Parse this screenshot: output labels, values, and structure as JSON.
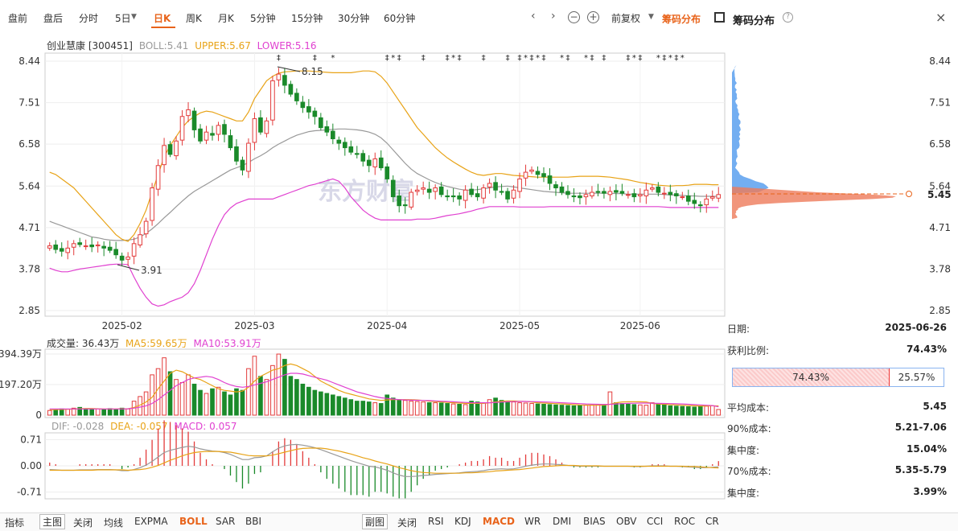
{
  "toolbar": {
    "items": [
      "盘前",
      "盘后",
      "分时",
      "5日",
      "日K",
      "周K",
      "月K",
      "5分钟",
      "15分钟",
      "30分钟",
      "60分钟"
    ],
    "dropdown_icon": "caret-down-icon",
    "adjust": "前复权",
    "dist_button": "筹码分布",
    "dist_title": "筹码分布",
    "help": "?",
    "close": "×"
  },
  "main_legend": {
    "stock": "创业慧康 [300451]",
    "boll": "BOLL:5.41",
    "upper": "UPPER:5.67",
    "lower": "LOWER:5.16"
  },
  "volume_legend": {
    "vol": "成交量: 36.43万",
    "ma5": "MA5:59.65万",
    "ma10": "MA10:53.91万"
  },
  "macd_legend": {
    "dif": "DIF: -0.028",
    "dea": "DEA: -0.057",
    "macd": "MACD: 0.057"
  },
  "watermark": "东方财富",
  "annotations": {
    "high": "8.15",
    "low": "3.91"
  },
  "current_price": "5.45",
  "colors": {
    "up": "#e33b3b",
    "down": "#1a8a2a",
    "upper": "#e8a317",
    "mid": "#999999",
    "lower": "#e040d0",
    "accent": "#e8631a"
  },
  "chart_data": [
    {
      "type": "candlestick",
      "title": "创业慧康 [300451]",
      "y_ticks": [
        "8.44",
        "7.51",
        "6.58",
        "5.64",
        "4.71",
        "3.78",
        "2.85"
      ],
      "ylim": [
        2.85,
        8.44
      ],
      "x_ticks": [
        "2025-02",
        "2025-03",
        "2025-04",
        "2025-05",
        "2025-06"
      ],
      "close": [
        4.3,
        4.22,
        4.18,
        4.25,
        4.35,
        4.33,
        4.3,
        4.28,
        4.32,
        4.25,
        4.2,
        4.1,
        3.98,
        4.05,
        4.35,
        4.55,
        4.85,
        5.6,
        6.1,
        6.55,
        6.35,
        6.65,
        7.2,
        7.35,
        6.9,
        6.65,
        6.85,
        6.78,
        7.0,
        6.8,
        6.5,
        6.2,
        6.0,
        6.6,
        7.15,
        6.85,
        7.1,
        8.0,
        8.15,
        7.9,
        7.7,
        7.55,
        7.4,
        7.3,
        7.2,
        6.95,
        6.85,
        6.7,
        6.6,
        6.5,
        6.4,
        6.35,
        6.2,
        6.1,
        6.25,
        6.05,
        5.8,
        5.4,
        5.2,
        5.2,
        5.5,
        5.55,
        5.6,
        5.5,
        5.6,
        5.45,
        5.4,
        5.4,
        5.35,
        5.55,
        5.45,
        5.4,
        5.6,
        5.7,
        5.55,
        5.5,
        5.35,
        5.55,
        5.8,
        5.95,
        6.0,
        5.9,
        5.85,
        5.7,
        5.6,
        5.5,
        5.45,
        5.4,
        5.38,
        5.45,
        5.5,
        5.5,
        5.48,
        5.52,
        5.5,
        5.48,
        5.45,
        5.4,
        5.45,
        5.55,
        5.6,
        5.5,
        5.48,
        5.45,
        5.42,
        5.4,
        5.3,
        5.25,
        5.2,
        5.35,
        5.4,
        5.45
      ],
      "series": [
        {
          "name": "BOLL",
          "values": [
            4.85,
            4.8,
            4.75,
            4.7,
            4.65,
            4.6,
            4.55,
            4.5,
            4.48,
            4.45,
            4.43,
            4.42,
            4.42,
            4.43,
            4.45,
            4.5,
            4.58,
            4.68,
            4.8,
            4.93,
            5.05,
            5.18,
            5.3,
            5.42,
            5.52,
            5.6,
            5.68,
            5.76,
            5.84,
            5.92,
            6.0,
            6.05,
            6.1,
            6.17,
            6.25,
            6.32,
            6.4,
            6.5,
            6.58,
            6.65,
            6.72,
            6.78,
            6.82,
            6.86,
            6.88,
            6.89,
            6.9,
            6.91,
            6.92,
            6.92,
            6.91,
            6.9,
            6.88,
            6.85,
            6.8,
            6.72,
            6.6,
            6.45,
            6.3,
            6.15,
            6.02,
            5.92,
            5.85,
            5.78,
            5.72,
            5.67,
            5.63,
            5.6,
            5.57,
            5.55,
            5.55,
            5.56,
            5.58,
            5.6,
            5.62,
            5.63,
            5.64,
            5.62,
            5.6,
            5.58,
            5.56,
            5.54,
            5.52,
            5.51,
            5.5,
            5.49,
            5.48,
            5.48,
            5.48,
            5.48,
            5.48,
            5.48,
            5.48,
            5.48,
            5.47,
            5.47,
            5.46,
            5.46,
            5.46,
            5.46,
            5.46,
            5.46,
            5.45,
            5.44,
            5.44,
            5.43,
            5.42,
            5.42,
            5.41,
            5.41,
            5.41,
            5.41
          ]
        },
        {
          "name": "UPPER",
          "values": [
            5.95,
            5.9,
            5.8,
            5.7,
            5.6,
            5.45,
            5.3,
            5.15,
            5.0,
            4.85,
            4.7,
            4.55,
            4.45,
            4.4,
            4.55,
            4.8,
            5.1,
            5.5,
            5.9,
            6.3,
            6.55,
            6.75,
            6.95,
            7.1,
            7.2,
            7.28,
            7.32,
            7.3,
            7.25,
            7.2,
            7.15,
            7.1,
            7.1,
            7.3,
            7.6,
            7.8,
            8.0,
            8.1,
            8.17,
            8.2,
            8.21,
            8.22,
            8.22,
            8.22,
            8.21,
            8.2,
            8.19,
            8.18,
            8.18,
            8.18,
            8.18,
            8.2,
            8.22,
            8.22,
            8.2,
            8.1,
            7.95,
            7.75,
            7.55,
            7.35,
            7.15,
            6.95,
            6.8,
            6.65,
            6.5,
            6.38,
            6.27,
            6.18,
            6.1,
            6.02,
            5.95,
            5.9,
            5.88,
            5.9,
            5.92,
            5.92,
            5.9,
            5.88,
            5.87,
            5.86,
            5.85,
            5.84,
            5.84,
            5.84,
            5.84,
            5.84,
            5.84,
            5.85,
            5.86,
            5.86,
            5.86,
            5.86,
            5.85,
            5.84,
            5.82,
            5.8,
            5.78,
            5.75,
            5.72,
            5.7,
            5.68,
            5.66,
            5.65,
            5.64,
            5.65,
            5.65,
            5.66,
            5.68,
            5.68,
            5.68,
            5.67,
            5.67
          ]
        },
        {
          "name": "LOWER",
          "values": [
            3.8,
            3.75,
            3.72,
            3.72,
            3.75,
            3.78,
            3.8,
            3.82,
            3.84,
            3.86,
            3.88,
            3.89,
            3.89,
            3.88,
            3.6,
            3.35,
            3.15,
            3.0,
            2.95,
            2.98,
            3.05,
            3.1,
            3.15,
            3.25,
            3.45,
            3.75,
            4.1,
            4.45,
            4.75,
            5.0,
            5.15,
            5.25,
            5.3,
            5.35,
            5.35,
            5.35,
            5.35,
            5.35,
            5.4,
            5.45,
            5.5,
            5.55,
            5.6,
            5.65,
            5.68,
            5.72,
            5.76,
            5.8,
            5.75,
            5.6,
            5.4,
            5.25,
            5.1,
            5.0,
            4.92,
            4.88,
            4.88,
            4.88,
            4.88,
            4.88,
            4.88,
            4.9,
            4.9,
            4.9,
            4.92,
            4.95,
            4.98,
            5.0,
            5.02,
            5.05,
            5.08,
            5.12,
            5.15,
            5.18,
            5.18,
            5.18,
            5.18,
            5.18,
            5.17,
            5.17,
            5.17,
            5.17,
            5.17,
            5.18,
            5.18,
            5.18,
            5.18,
            5.18,
            5.18,
            5.18,
            5.18,
            5.18,
            5.18,
            5.18,
            5.18,
            5.18,
            5.18,
            5.18,
            5.18,
            5.18,
            5.18,
            5.18,
            5.17,
            5.16,
            5.16,
            5.16,
            5.16,
            5.16,
            5.16,
            5.16,
            5.16,
            5.16
          ]
        }
      ]
    },
    {
      "type": "bar",
      "title": "成交量",
      "y_ticks": [
        "394.39万",
        "197.20万",
        "0"
      ],
      "ylim": [
        0,
        394.39
      ],
      "values": [
        30,
        35,
        40,
        38,
        45,
        50,
        42,
        38,
        40,
        36,
        42,
        38,
        45,
        40,
        90,
        120,
        150,
        260,
        300,
        370,
        280,
        230,
        210,
        260,
        200,
        160,
        140,
        170,
        180,
        150,
        130,
        170,
        160,
        300,
        380,
        250,
        230,
        320,
        394,
        360,
        250,
        230,
        200,
        180,
        160,
        150,
        140,
        130,
        120,
        110,
        100,
        90,
        90,
        85,
        80,
        75,
        130,
        110,
        100,
        95,
        90,
        88,
        85,
        80,
        80,
        78,
        75,
        72,
        70,
        68,
        90,
        85,
        80,
        100,
        110,
        95,
        90,
        85,
        80,
        78,
        75,
        72,
        70,
        68,
        66,
        64,
        62,
        60,
        62,
        64,
        66,
        68,
        70,
        150,
        80,
        75,
        70,
        68,
        66,
        64,
        80,
        70,
        65,
        60,
        58,
        56,
        54,
        52,
        55,
        58,
        60,
        36.43
      ],
      "series": [
        {
          "name": "MA5",
          "values": [
            35,
            36,
            37,
            38,
            39,
            41,
            43,
            43,
            41,
            40,
            39,
            40,
            41,
            41,
            50,
            65,
            85,
            115,
            170,
            220,
            270,
            290,
            280,
            260,
            240,
            230,
            210,
            190,
            170,
            160,
            155,
            150,
            155,
            180,
            220,
            250,
            270,
            290,
            300,
            320,
            330,
            320,
            300,
            280,
            250,
            220,
            200,
            180,
            160,
            145,
            135,
            125,
            115,
            105,
            100,
            95,
            98,
            100,
            100,
            100,
            100,
            98,
            95,
            90,
            87,
            85,
            82,
            80,
            78,
            76,
            76,
            76,
            76,
            80,
            85,
            90,
            92,
            92,
            90,
            88,
            84,
            80,
            78,
            76,
            74,
            72,
            70,
            68,
            66,
            65,
            64,
            64,
            65,
            70,
            80,
            85,
            86,
            86,
            86,
            85,
            76,
            72,
            70,
            68,
            66,
            64,
            62,
            60,
            59,
            59,
            60,
            59.65
          ]
        },
        {
          "name": "MA10",
          "values": [
            40,
            40,
            40,
            40,
            40,
            40,
            40,
            40,
            40,
            40,
            40,
            40,
            40,
            41,
            45,
            52,
            60,
            75,
            100,
            130,
            160,
            190,
            210,
            230,
            240,
            245,
            250,
            245,
            230,
            210,
            195,
            185,
            180,
            185,
            195,
            205,
            215,
            230,
            245,
            260,
            270,
            270,
            265,
            255,
            245,
            235,
            225,
            210,
            195,
            180,
            165,
            150,
            140,
            130,
            120,
            112,
            108,
            104,
            100,
            98,
            97,
            96,
            95,
            94,
            92,
            90,
            88,
            86,
            84,
            82,
            80,
            80,
            80,
            80,
            82,
            84,
            86,
            87,
            88,
            88,
            87,
            86,
            85,
            84,
            82,
            80,
            78,
            76,
            74,
            72,
            71,
            70,
            69,
            70,
            72,
            74,
            76,
            77,
            78,
            78,
            77,
            76,
            75,
            74,
            73,
            72,
            70,
            68,
            66,
            64,
            62,
            53.91
          ]
        }
      ]
    },
    {
      "type": "line",
      "title": "MACD",
      "y_ticks": [
        "0.71",
        "0.00",
        "-0.71"
      ],
      "ylim": [
        -0.85,
        0.85
      ],
      "series": [
        {
          "name": "DIF",
          "values": [
            -0.1,
            -0.11,
            -0.12,
            -0.12,
            -0.12,
            -0.11,
            -0.11,
            -0.11,
            -0.1,
            -0.1,
            -0.1,
            -0.11,
            -0.13,
            -0.13,
            -0.1,
            -0.05,
            0.02,
            0.12,
            0.24,
            0.36,
            0.42,
            0.46,
            0.5,
            0.53,
            0.51,
            0.46,
            0.43,
            0.4,
            0.39,
            0.36,
            0.31,
            0.24,
            0.17,
            0.17,
            0.22,
            0.23,
            0.27,
            0.38,
            0.48,
            0.54,
            0.57,
            0.58,
            0.56,
            0.53,
            0.49,
            0.44,
            0.38,
            0.32,
            0.26,
            0.2,
            0.14,
            0.09,
            0.04,
            -0.01,
            -0.03,
            -0.07,
            -0.12,
            -0.19,
            -0.25,
            -0.29,
            -0.29,
            -0.28,
            -0.26,
            -0.25,
            -0.23,
            -0.22,
            -0.21,
            -0.2,
            -0.19,
            -0.17,
            -0.16,
            -0.15,
            -0.13,
            -0.1,
            -0.09,
            -0.08,
            -0.09,
            -0.08,
            -0.05,
            -0.01,
            0.02,
            0.04,
            0.05,
            0.05,
            0.04,
            0.03,
            0.01,
            0.0,
            -0.01,
            -0.01,
            -0.01,
            -0.01,
            -0.01,
            -0.01,
            -0.01,
            -0.01,
            -0.01,
            -0.02,
            -0.02,
            -0.01,
            0.0,
            0.0,
            0.0,
            -0.01,
            -0.01,
            -0.02,
            -0.03,
            -0.04,
            -0.05,
            -0.05,
            -0.04,
            -0.028
          ]
        },
        {
          "name": "DEA",
          "values": [
            -0.12,
            -0.12,
            -0.12,
            -0.12,
            -0.12,
            -0.12,
            -0.12,
            -0.12,
            -0.11,
            -0.11,
            -0.11,
            -0.11,
            -0.11,
            -0.12,
            -0.11,
            -0.1,
            -0.08,
            -0.04,
            0.01,
            0.08,
            0.15,
            0.21,
            0.27,
            0.32,
            0.36,
            0.38,
            0.39,
            0.39,
            0.39,
            0.38,
            0.37,
            0.34,
            0.31,
            0.28,
            0.27,
            0.27,
            0.27,
            0.29,
            0.33,
            0.37,
            0.41,
            0.45,
            0.47,
            0.48,
            0.48,
            0.48,
            0.46,
            0.43,
            0.4,
            0.36,
            0.32,
            0.27,
            0.22,
            0.18,
            0.13,
            0.09,
            0.05,
            0.0,
            -0.05,
            -0.09,
            -0.13,
            -0.16,
            -0.18,
            -0.19,
            -0.2,
            -0.2,
            -0.2,
            -0.2,
            -0.2,
            -0.19,
            -0.19,
            -0.18,
            -0.17,
            -0.16,
            -0.14,
            -0.13,
            -0.12,
            -0.11,
            -0.1,
            -0.08,
            -0.06,
            -0.04,
            -0.02,
            -0.01,
            0.0,
            0.01,
            0.01,
            0.01,
            0.0,
            0.0,
            0.0,
            0.0,
            -0.01,
            -0.01,
            -0.01,
            -0.01,
            -0.01,
            -0.01,
            -0.01,
            -0.01,
            -0.01,
            -0.01,
            -0.01,
            -0.01,
            -0.01,
            -0.01,
            -0.02,
            -0.02,
            -0.03,
            -0.04,
            -0.05,
            -0.057
          ]
        }
      ]
    }
  ],
  "chip_dist": {
    "label_date": "日期:",
    "date": "2025-06-26",
    "label_profit": "获利比例:",
    "profit": "74.43%",
    "profit_bar_red": "74.43%",
    "profit_bar_blue": "25.57%",
    "profit_fraction": 0.7443,
    "label_avg": "平均成本:",
    "avg": "5.45",
    "label_90": "90%成本:",
    "cost90": "5.21-7.06",
    "label_conc1": "集中度:",
    "conc1": "15.04%",
    "label_70": "70%成本:",
    "cost70": "5.35-5.79",
    "label_conc2": "集中度:",
    "conc2": "3.99%"
  },
  "bottom": {
    "left": [
      "指标",
      "主图",
      "关闭",
      "均线",
      "EXPMA",
      "BOLL",
      "SAR",
      "BBI"
    ],
    "right": [
      "副图",
      "关闭",
      "RSI",
      "KDJ",
      "MACD",
      "WR",
      "DMI",
      "BIAS",
      "OBV",
      "CCI",
      "ROC",
      "CR"
    ]
  }
}
